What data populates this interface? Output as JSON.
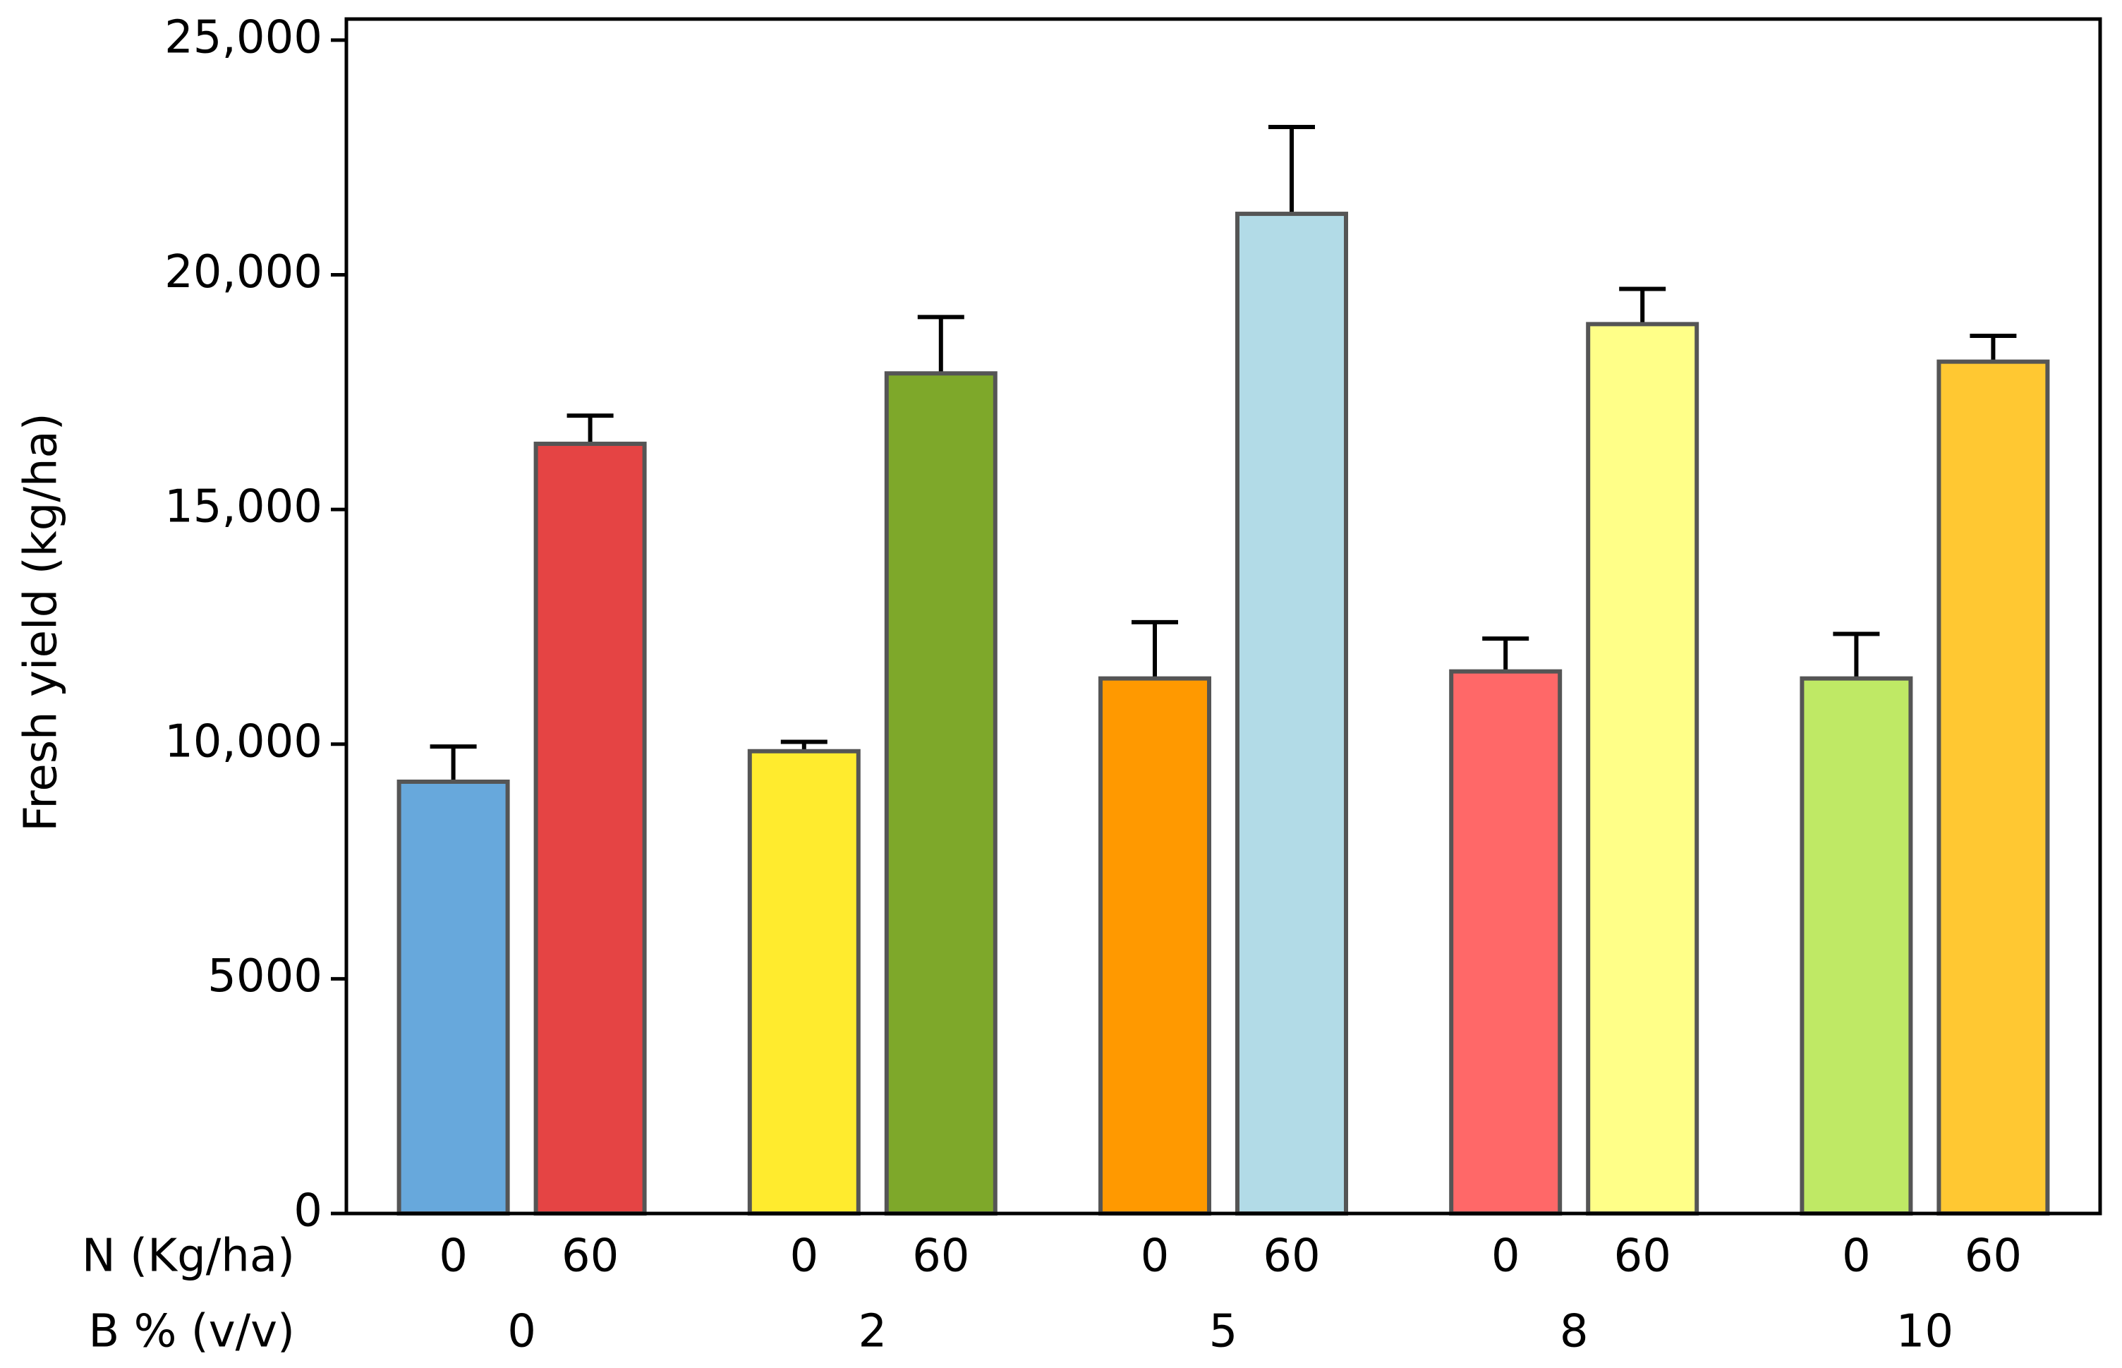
{
  "chart_data": {
    "type": "bar",
    "y_label": "Fresh yield (kg/ha)",
    "row_labels": [
      "N (Kg/ha)",
      "B % (v/v)"
    ],
    "groups": [
      "0",
      "2",
      "5",
      "8",
      "10"
    ],
    "categories": [
      "0",
      "60",
      "0",
      "60",
      "0",
      "60",
      "0",
      "60",
      "0",
      "60"
    ],
    "values": [
      9200,
      16400,
      9850,
      17900,
      11400,
      21300,
      11550,
      18950,
      11400,
      18150
    ],
    "errors": [
      750,
      600,
      200,
      1200,
      1200,
      1850,
      700,
      750,
      950,
      550
    ],
    "colors": [
      "#67a8dc",
      "#e54444",
      "#ffeb2e",
      "#7ea82a",
      "#ff9900",
      "#b2dbe7",
      "#ff6868",
      "#ffff88",
      "#bfe965",
      "#ffc832"
    ],
    "ylim": [
      0,
      25450
    ],
    "yticks": [
      0,
      5000,
      {
        "value": 10000,
        "label": "10,000"
      },
      {
        "value": 15000,
        "label": "15,000"
      },
      {
        "value": 20000,
        "label": "20,000"
      },
      {
        "value": 25000,
        "label": "25,000"
      }
    ]
  }
}
